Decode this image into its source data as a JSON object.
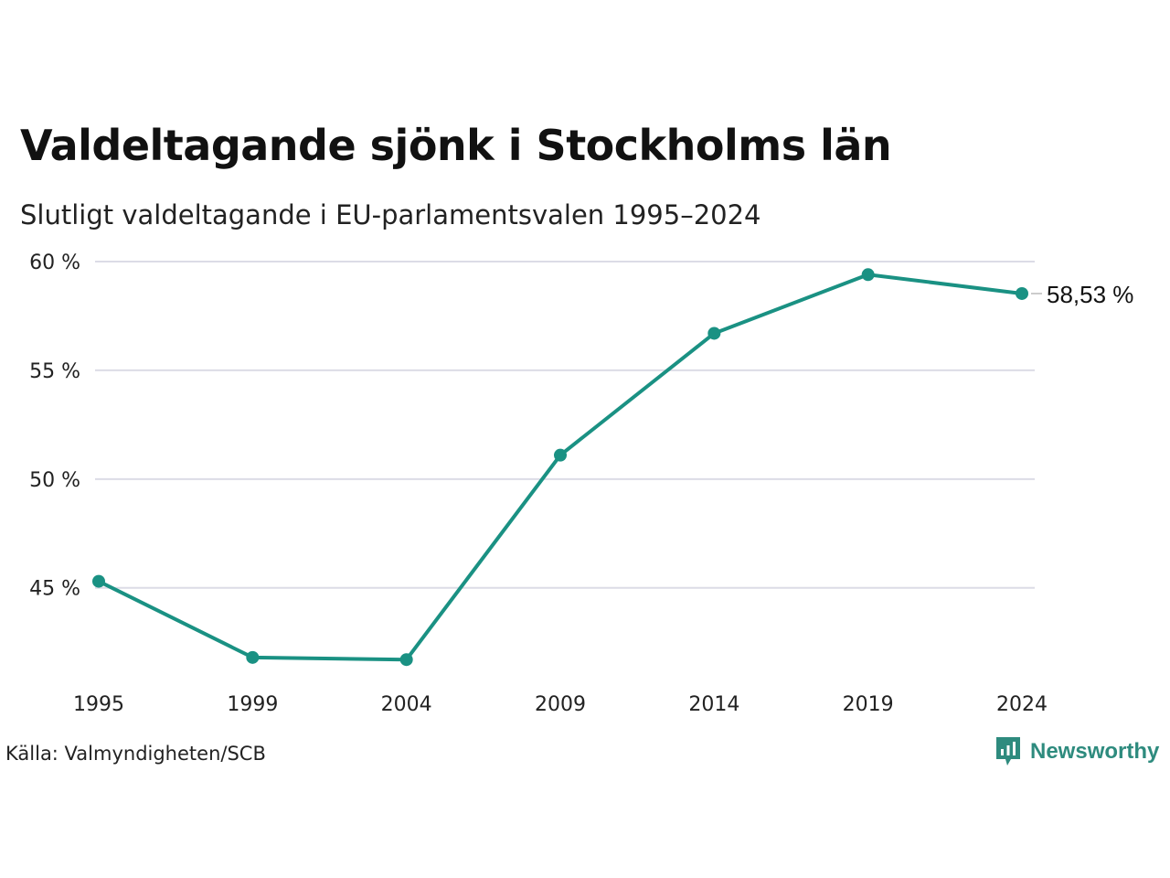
{
  "header": {
    "title": "Valdeltagande sjönk i Stockholms län",
    "subtitle": "Slutligt valdeltagande i EU-parlamentsvalen 1995–2024"
  },
  "footer": {
    "source": "Källa: Valmyndigheten/SCB",
    "brand": "Newsworthy",
    "brand_icon": "bar-chart-speech-bubble-icon"
  },
  "colors": {
    "line": "#1a9183",
    "grid": "#dcdce6",
    "brand": "#2e8b7e"
  },
  "chart_data": {
    "type": "line",
    "title": "Valdeltagande sjönk i Stockholms län",
    "subtitle": "Slutligt valdeltagande i EU-parlamentsvalen 1995–2024",
    "categories": [
      "1995",
      "1999",
      "2004",
      "2009",
      "2014",
      "2019",
      "2024"
    ],
    "series": [
      {
        "values": [
          45.3,
          41.8,
          41.7,
          51.1,
          56.7,
          59.4,
          58.53
        ]
      }
    ],
    "end_label": "58,53 %",
    "y_ticks": [
      45,
      50,
      55,
      60
    ],
    "y_tick_labels": [
      "45 %",
      "50 %",
      "55 %",
      "60 %"
    ],
    "ylim": [
      40.7,
      60
    ],
    "grid": true,
    "legend": "none"
  }
}
